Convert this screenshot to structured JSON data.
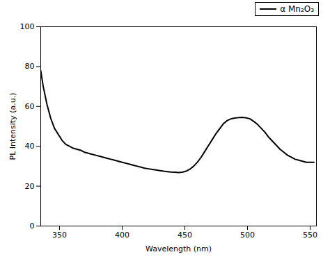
{
  "chart_data": {
    "type": "line",
    "xlabel": "Wavelength (nm)",
    "ylabel": "PL Intensity (a.u.)",
    "x": [
      335,
      337,
      340,
      343,
      346,
      349,
      352,
      355,
      358,
      361,
      364,
      367,
      370,
      373,
      376,
      379,
      382,
      385,
      388,
      391,
      394,
      397,
      400,
      403,
      406,
      409,
      412,
      415,
      418,
      421,
      424,
      427,
      430,
      433,
      436,
      439,
      442,
      445,
      448,
      451,
      454,
      457,
      460,
      463,
      466,
      469,
      472,
      475,
      478,
      481,
      484,
      487,
      490,
      493,
      496,
      499,
      502,
      505,
      508,
      511,
      514,
      517,
      520,
      523,
      526,
      529,
      532,
      535,
      538,
      541,
      544,
      547,
      550,
      553
    ],
    "series": [
      {
        "name": "α Mn₂O₃",
        "color": "#000000",
        "values": [
          78,
          70,
          61,
          54,
          49,
          46,
          43,
          41,
          40,
          39,
          38.5,
          38,
          37,
          36.5,
          36,
          35.5,
          35,
          34.5,
          34,
          33.5,
          33,
          32.5,
          32,
          31.5,
          31.0,
          30.5,
          30.0,
          29.5,
          29.0,
          28.7,
          28.4,
          28.1,
          27.8,
          27.5,
          27.3,
          27.1,
          27.0,
          26.8,
          27.0,
          27.5,
          28.5,
          30.0,
          32.0,
          34.5,
          37.5,
          40.5,
          43.5,
          46.5,
          49.0,
          51.5,
          53.0,
          53.8,
          54.2,
          54.4,
          54.5,
          54.3,
          53.8,
          52.5,
          51.0,
          49.0,
          47.0,
          44.5,
          42.5,
          40.5,
          38.5,
          37.0,
          35.5,
          34.5,
          33.5,
          33.0,
          32.5,
          32.0,
          32.0,
          32.0
        ]
      }
    ],
    "xlim": [
      335,
      555
    ],
    "ylim": [
      0,
      100
    ],
    "xticks": [
      350,
      400,
      450,
      500,
      550
    ],
    "yticks": [
      0,
      20,
      40,
      60,
      80,
      100
    ],
    "legend": "upper right"
  }
}
